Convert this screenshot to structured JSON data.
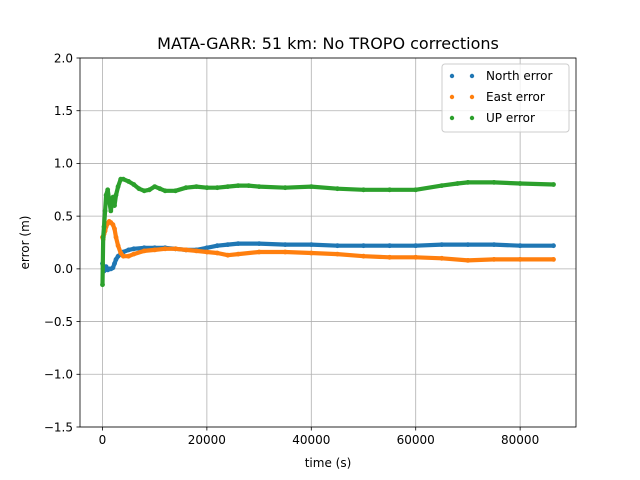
{
  "chart_data": {
    "type": "scatter",
    "title": "MATA-GARR: 51 km: No TROPO corrections",
    "xlabel": "time (s)",
    "ylabel": "error (m)",
    "xlim": [
      -4300,
      90700
    ],
    "ylim": [
      -1.5,
      2.0
    ],
    "xticks": [
      0,
      20000,
      40000,
      60000,
      80000
    ],
    "yticks": [
      -1.5,
      -1.0,
      -0.5,
      0.0,
      0.5,
      1.0,
      1.5,
      2.0
    ],
    "xtick_labels": [
      "0",
      "20000",
      "40000",
      "60000",
      "80000"
    ],
    "ytick_labels": [
      "−1.5",
      "−1.0",
      "−0.5",
      "0.0",
      "0.5",
      "1.0",
      "1.5",
      "2.0"
    ],
    "grid": true,
    "legend_position": "top-right",
    "series": [
      {
        "name": "North error",
        "color": "#1f77b4",
        "x": [
          0,
          150,
          300,
          500,
          700,
          1000,
          1300,
          1600,
          2000,
          2300,
          2600,
          3000,
          3500,
          4000,
          5000,
          6000,
          8000,
          10000,
          12000,
          14000,
          16000,
          18000,
          20000,
          22000,
          24000,
          26000,
          30000,
          35000,
          40000,
          45000,
          50000,
          55000,
          60000,
          65000,
          70000,
          75000,
          80000,
          86400
        ],
        "y": [
          0.05,
          0.03,
          -0.02,
          0.0,
          0.02,
          -0.01,
          0.0,
          0.0,
          0.01,
          0.05,
          0.09,
          0.12,
          0.14,
          0.16,
          0.18,
          0.19,
          0.2,
          0.2,
          0.2,
          0.19,
          0.18,
          0.18,
          0.2,
          0.22,
          0.23,
          0.24,
          0.24,
          0.23,
          0.23,
          0.22,
          0.22,
          0.22,
          0.22,
          0.23,
          0.23,
          0.23,
          0.22,
          0.22
        ]
      },
      {
        "name": "East error",
        "color": "#ff7f0e",
        "x": [
          0,
          150,
          300,
          500,
          700,
          1000,
          1300,
          1600,
          2000,
          2300,
          2600,
          3000,
          3500,
          4000,
          5000,
          6000,
          8000,
          10000,
          12000,
          14000,
          16000,
          18000,
          20000,
          22000,
          24000,
          26000,
          30000,
          35000,
          40000,
          45000,
          50000,
          55000,
          60000,
          65000,
          70000,
          75000,
          80000,
          86400
        ],
        "y": [
          0.3,
          0.28,
          0.33,
          0.36,
          0.4,
          0.43,
          0.45,
          0.44,
          0.42,
          0.38,
          0.3,
          0.22,
          0.15,
          0.12,
          0.12,
          0.14,
          0.17,
          0.18,
          0.19,
          0.19,
          0.18,
          0.17,
          0.16,
          0.15,
          0.13,
          0.14,
          0.16,
          0.16,
          0.15,
          0.14,
          0.12,
          0.11,
          0.11,
          0.1,
          0.08,
          0.09,
          0.09,
          0.09
        ]
      },
      {
        "name": "UP error",
        "color": "#2ca02c",
        "x": [
          0,
          150,
          300,
          500,
          700,
          1000,
          1300,
          1600,
          2000,
          2300,
          2600,
          3000,
          3500,
          4000,
          5000,
          6000,
          7000,
          8000,
          9000,
          10000,
          11000,
          12000,
          14000,
          16000,
          18000,
          20000,
          22000,
          24000,
          26000,
          28000,
          30000,
          35000,
          40000,
          45000,
          50000,
          55000,
          60000,
          65000,
          68000,
          70000,
          75000,
          80000,
          86400
        ],
        "y": [
          -0.15,
          0.3,
          0.4,
          0.55,
          0.7,
          0.75,
          0.65,
          0.55,
          0.68,
          0.6,
          0.7,
          0.78,
          0.85,
          0.85,
          0.83,
          0.8,
          0.76,
          0.74,
          0.75,
          0.78,
          0.76,
          0.74,
          0.74,
          0.77,
          0.78,
          0.77,
          0.77,
          0.78,
          0.79,
          0.79,
          0.78,
          0.77,
          0.78,
          0.76,
          0.75,
          0.75,
          0.75,
          0.79,
          0.81,
          0.82,
          0.82,
          0.81,
          0.8
        ]
      }
    ]
  }
}
